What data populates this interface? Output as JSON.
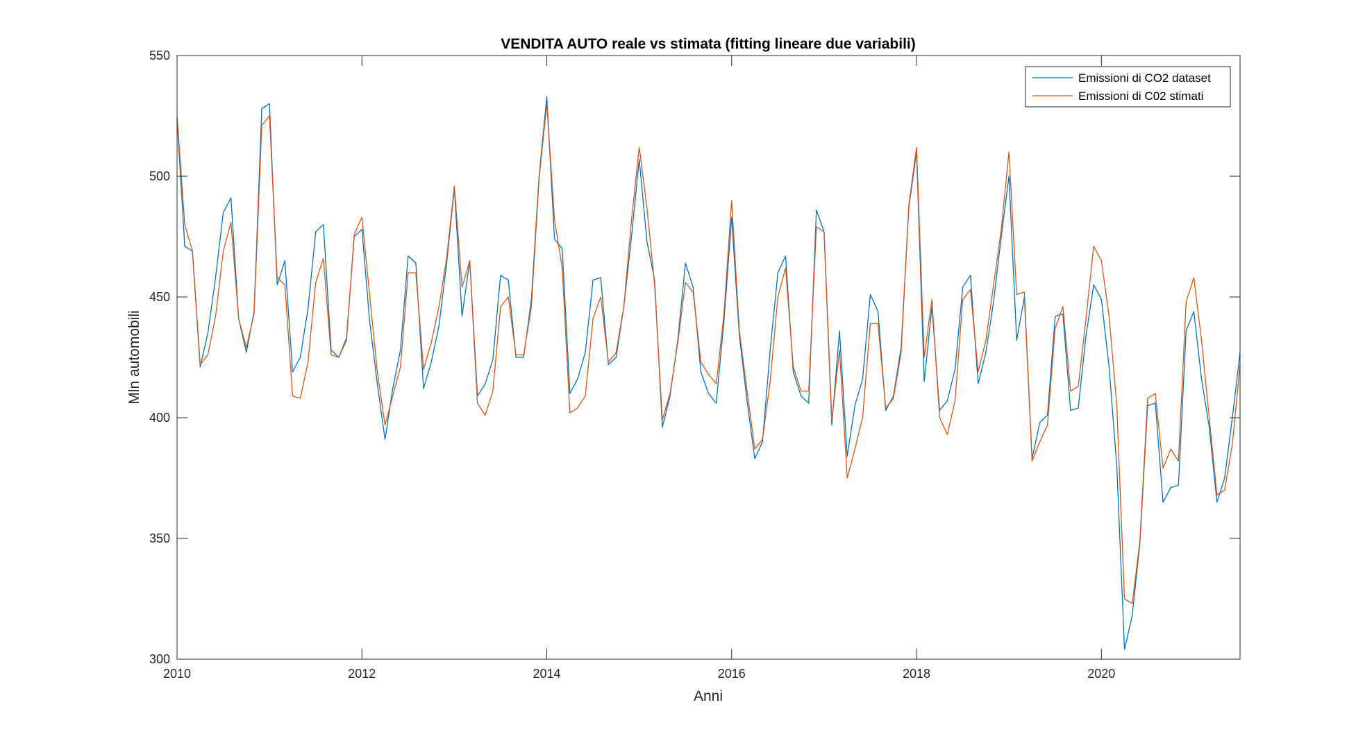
{
  "chart_data": {
    "type": "line",
    "title": "VENDITA AUTO reale vs stimata (fitting lineare due variabili)",
    "xlabel": "Anni",
    "ylabel": "Mln automobili",
    "xlim": [
      2010,
      2021.5
    ],
    "ylim": [
      300,
      550
    ],
    "xticks": [
      2010,
      2012,
      2014,
      2016,
      2018,
      2020
    ],
    "yticks": [
      300,
      350,
      400,
      450,
      500,
      550
    ],
    "grid": false,
    "legend_position": "top-right",
    "x_start": 2010,
    "x_step": 0.083333,
    "series": [
      {
        "name": "Emissioni di CO2 dataset",
        "color": "#0072BD",
        "values": [
          524,
          471,
          469,
          421,
          435,
          458,
          485,
          491,
          441,
          427,
          444,
          528,
          530,
          455,
          465,
          419,
          425,
          445,
          477,
          480,
          428,
          425,
          433,
          475,
          478,
          440,
          414,
          391,
          412,
          428,
          467,
          464,
          412,
          423,
          438,
          464,
          495,
          442,
          465,
          409,
          414,
          424,
          459,
          457,
          425,
          425,
          449,
          500,
          533,
          474,
          470,
          410,
          416,
          427,
          457,
          458,
          422,
          425,
          446,
          475,
          507,
          473,
          457,
          396,
          409,
          432,
          464,
          454,
          419,
          410,
          406,
          440,
          483,
          434,
          407,
          383,
          390,
          428,
          460,
          467,
          419,
          409,
          406,
          486,
          477,
          397,
          436,
          384,
          405,
          416,
          451,
          444,
          403,
          409,
          429,
          487,
          510,
          415,
          446,
          403,
          407,
          420,
          454,
          459,
          414,
          427,
          448,
          475,
          500,
          432,
          450,
          383,
          398,
          401,
          442,
          443,
          403,
          404,
          434,
          455,
          449,
          421,
          380,
          304,
          318,
          348,
          405,
          406,
          365,
          371,
          372,
          436,
          444,
          416,
          396,
          365,
          375,
          400,
          427
        ]
      },
      {
        "name": "Emissioni di C02 stimati",
        "color": "#D95319",
        "values": [
          525,
          480,
          469,
          422,
          426,
          442,
          469,
          481,
          441,
          429,
          443,
          521,
          525,
          458,
          455,
          409,
          408,
          423,
          456,
          466,
          426,
          425,
          432,
          476,
          483,
          451,
          419,
          397,
          409,
          421,
          460,
          460,
          420,
          431,
          446,
          466,
          496,
          454,
          465,
          406,
          401,
          411,
          446,
          450,
          426,
          426,
          446,
          499,
          530,
          482,
          462,
          402,
          404,
          409,
          441,
          450,
          423,
          427,
          446,
          482,
          512,
          487,
          455,
          399,
          410,
          431,
          456,
          452,
          423,
          418,
          414,
          443,
          490,
          436,
          411,
          387,
          391,
          415,
          450,
          462,
          421,
          411,
          411,
          479,
          477,
          399,
          428,
          375,
          387,
          400,
          439,
          439,
          404,
          408,
          427,
          488,
          512,
          425,
          449,
          400,
          393,
          407,
          449,
          453,
          419,
          432,
          455,
          478,
          510,
          451,
          452,
          382,
          390,
          397,
          437,
          446,
          411,
          413,
          441,
          471,
          465,
          442,
          405,
          325,
          323,
          349,
          408,
          410,
          379,
          387,
          382,
          448,
          458,
          432,
          400,
          368,
          370,
          389,
          422
        ]
      }
    ]
  }
}
